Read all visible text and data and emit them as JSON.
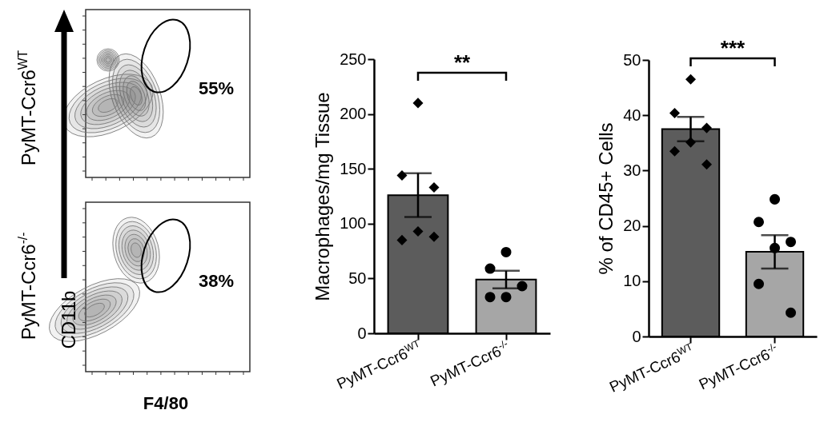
{
  "chart_data": [
    {
      "type": "other",
      "xlabel": "F4/80",
      "ylabel": "CD11b",
      "annotations": [
        "PyMT-Ccr6$^{WT}$",
        "PyMT-Ccr6$^{-/-}$",
        "55%",
        "38%"
      ]
    },
    {
      "type": "bar",
      "categories": [
        "PyMT-Ccr6$^{WT}$",
        "PyMT-Ccr6$^{-/-}$"
      ],
      "ylabel": "Macrophages/mg Tissue",
      "ylim": [
        0,
        250
      ],
      "yticks": [
        0,
        50,
        100,
        150,
        200,
        250
      ],
      "annotations": [
        "**"
      ],
      "series": [
        {
          "type": "bar",
          "values": [
            126,
            49
          ],
          "colors": [
            "#5c5c5c",
            "#a6a6a6"
          ],
          "errors": [
            20,
            8
          ]
        },
        {
          "type": "scatter",
          "x": [
            "PyMT-Ccr6$^{WT}$",
            "PyMT-Ccr6$^{WT}$",
            "PyMT-Ccr6$^{WT}$",
            "PyMT-Ccr6$^{WT}$",
            "PyMT-Ccr6$^{WT}$",
            "PyMT-Ccr6$^{WT}$"
          ],
          "values": [
            210,
            144,
            133,
            93,
            85,
            88
          ],
          "color": "#000000",
          "marker": "diamond"
        },
        {
          "type": "scatter",
          "x": [
            "PyMT-Ccr6$^{-/-}$",
            "PyMT-Ccr6$^{-/-}$",
            "PyMT-Ccr6$^{-/-}$",
            "PyMT-Ccr6$^{-/-}$",
            "PyMT-Ccr6$^{-/-}$"
          ],
          "values": [
            74,
            59,
            43,
            33,
            33
          ],
          "color": "#000000",
          "marker": "circle"
        }
      ]
    },
    {
      "type": "bar",
      "categories": [
        "PyMT-Ccr6$^{WT}$",
        "PyMT-Ccr6$^{-/-}$"
      ],
      "ylabel": "% of CD45+ Cells",
      "ylim": [
        0,
        50
      ],
      "yticks": [
        0,
        10,
        20,
        30,
        40,
        50
      ],
      "annotations": [
        "***"
      ],
      "series": [
        {
          "type": "bar",
          "values": [
            37.5,
            15.3
          ],
          "colors": [
            "#5c5c5c",
            "#a6a6a6"
          ],
          "errors": [
            2.2,
            3
          ]
        },
        {
          "type": "scatter",
          "x": [
            "PyMT-Ccr6$^{WT}$",
            "PyMT-Ccr6$^{WT}$",
            "PyMT-Ccr6$^{WT}$",
            "PyMT-Ccr6$^{WT}$",
            "PyMT-Ccr6$^{WT}$",
            "PyMT-Ccr6$^{WT}$"
          ],
          "values": [
            46.5,
            40.4,
            37.7,
            35.1,
            33.5,
            31.1
          ],
          "color": "#000000",
          "marker": "diamond"
        },
        {
          "type": "scatter",
          "x": [
            "PyMT-Ccr6$^{-/-}$",
            "PyMT-Ccr6$^{-/-}$",
            "PyMT-Ccr6$^{-/-}$",
            "PyMT-Ccr6$^{-/-}$",
            "PyMT-Ccr6$^{-/-}$",
            "PyMT-Ccr6$^{-/-}$"
          ],
          "values": [
            24.8,
            20.7,
            17.1,
            16,
            9.5,
            4.3
          ],
          "color": "#000000",
          "marker": "circle"
        }
      ]
    }
  ]
}
